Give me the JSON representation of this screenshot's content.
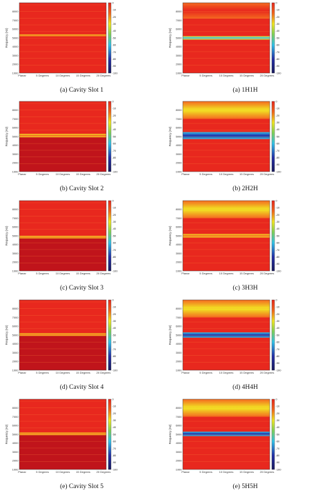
{
  "chart_data": [
    {
      "type": "heatmap",
      "id": "a-left",
      "caption": "(a) Cavity Slot 1",
      "ylabel": "Frequency (Hz)",
      "yticks": [
        "8000",
        "7000",
        "6000",
        "5000",
        "4000",
        "3000",
        "2000",
        "1000"
      ],
      "yticks_visible": [
        true,
        true,
        true,
        true,
        true,
        true,
        true,
        true
      ],
      "xticks": [
        "Planar",
        "5 Degrees",
        "10 Degrees",
        "15 Degrees",
        "20 Degrees"
      ],
      "colorbar_ticks": [
        "0",
        "-10",
        "-20",
        "-30",
        "-40",
        "-50",
        "-60",
        "-70",
        "-80",
        "-90",
        "-100"
      ],
      "clim": [
        -100,
        0
      ],
      "ylim": [
        1000,
        9000
      ],
      "bands": [
        [
          9000,
          5500,
          "red"
        ],
        [
          5400,
          5200,
          "yellow"
        ],
        [
          5200,
          1000,
          "red"
        ]
      ]
    },
    {
      "type": "heatmap",
      "id": "a-right",
      "caption": "(a) 1H1H",
      "ylabel": "Frequency (Hz)",
      "yticks": [
        "8000",
        "7000",
        "6000",
        "5000",
        "4000",
        "3000",
        "2000",
        "1000"
      ],
      "yticks_visible": [
        true,
        true,
        true,
        true,
        true,
        true,
        true,
        true
      ],
      "xticks": [
        "Planar",
        "5 Degrees",
        "10 Degrees",
        "15 Degrees",
        "20 Degrees"
      ],
      "colorbar_ticks": [
        "0",
        "-10",
        "-20",
        "-30",
        "-40",
        "-50",
        "-60",
        "-70",
        "-80",
        "-90",
        "-100"
      ],
      "clim": [
        -100,
        0
      ],
      "ylim": [
        1000,
        9000
      ],
      "bands": [
        [
          9000,
          7200,
          "orange"
        ],
        [
          7200,
          5200,
          "red"
        ],
        [
          5200,
          4800,
          "yellow-cyan"
        ],
        [
          4800,
          1000,
          "red"
        ]
      ]
    },
    {
      "type": "heatmap",
      "id": "b-left",
      "caption": "(b) Cavity Slot 2",
      "ylabel": "Frequency (Hz)",
      "yticks": [
        "8000",
        "7000",
        "6000",
        "5000",
        "4000",
        "3000",
        "2000",
        "1000"
      ],
      "yticks_visible": [
        true,
        true,
        true,
        true,
        true,
        true,
        true,
        true
      ],
      "xticks": [
        "Planar",
        "5 Degrees",
        "10 Degrees",
        "15 Degrees",
        "20 Degrees"
      ],
      "colorbar_ticks": [
        "0",
        "-10",
        "-20",
        "-30",
        "-40",
        "-50",
        "-60",
        "-70",
        "-80",
        "-90",
        "-100"
      ],
      "clim": [
        -100,
        0
      ],
      "ylim": [
        1000,
        9000
      ],
      "bands": [
        [
          9000,
          5300,
          "red"
        ],
        [
          5300,
          4900,
          "yellow"
        ],
        [
          4900,
          1000,
          "dark-red"
        ]
      ]
    },
    {
      "type": "heatmap",
      "id": "b-right",
      "caption": "(b) 2H2H",
      "ylabel": "Frequency (Hz)",
      "yticks": [
        "8000",
        "7000",
        "6000",
        "5000",
        "4000",
        "3000",
        "2000",
        "1000"
      ],
      "yticks_visible": [
        true,
        true,
        true,
        true,
        true,
        true,
        true,
        true
      ],
      "xticks": [
        "Planar",
        "5 Degrees",
        "10 Degrees",
        "15 Degrees",
        "20 Degrees"
      ],
      "colorbar_ticks": [
        "0",
        "-10",
        "-20",
        "-30",
        "-40",
        "-50",
        "-60",
        "-70",
        "-80",
        "-90",
        "-100"
      ],
      "clim": [
        -100,
        0
      ],
      "ylim": [
        1000,
        9000
      ],
      "bands": [
        [
          9000,
          7000,
          "orange-yellow"
        ],
        [
          7000,
          5500,
          "red"
        ],
        [
          5500,
          4700,
          "cyan-blue"
        ],
        [
          4700,
          1000,
          "red"
        ]
      ]
    },
    {
      "type": "heatmap",
      "id": "c-left",
      "caption": "(c) Cavity Slot 3",
      "ylabel": "Frequency (Hz)",
      "yticks": [
        "8000",
        "7000",
        "6000",
        "5000",
        "4000",
        "3000",
        "2000",
        "1000"
      ],
      "yticks_visible": [
        true,
        true,
        true,
        true,
        true,
        true,
        true,
        true
      ],
      "xticks": [
        "Planar",
        "5 Degrees",
        "10 Degrees",
        "15 Degrees",
        "20 Degrees"
      ],
      "colorbar_ticks": [
        "0",
        "-10",
        "-20",
        "-30",
        "-40",
        "-50",
        "-60",
        "-70",
        "-80",
        "-90",
        "-100"
      ],
      "clim": [
        -100,
        0
      ],
      "ylim": [
        1000,
        9000
      ],
      "bands": [
        [
          9000,
          5000,
          "red"
        ],
        [
          5000,
          4700,
          "yellow"
        ],
        [
          4700,
          1000,
          "dark-red"
        ]
      ]
    },
    {
      "type": "heatmap",
      "id": "c-right",
      "caption": "(c) 3H3H",
      "ylabel": "Frequency (Hz)",
      "yticks": [
        "8000",
        "7000",
        "6000",
        "5000",
        "4000",
        "3000",
        "2000",
        "1000"
      ],
      "yticks_visible": [
        true,
        true,
        true,
        true,
        true,
        true,
        true,
        true
      ],
      "xticks": [
        "Planar",
        "5 Degrees",
        "10 Degrees",
        "15 Degrees",
        "20 Degrees"
      ],
      "colorbar_ticks": [
        "0",
        "-10",
        "-20",
        "-30",
        "-40",
        "-50",
        "-60",
        "-70",
        "-80",
        "-90",
        "-100"
      ],
      "clim": [
        -100,
        0
      ],
      "ylim": [
        1000,
        9000
      ],
      "bands": [
        [
          9000,
          7000,
          "orange-yellow"
        ],
        [
          7000,
          5200,
          "red"
        ],
        [
          5200,
          4800,
          "yellow"
        ],
        [
          4800,
          1000,
          "red"
        ]
      ]
    },
    {
      "type": "heatmap",
      "id": "d-left",
      "caption": "(d) Cavity Slot 4",
      "ylabel": "Frequency (Hz)",
      "yticks": [
        "8000",
        "7000",
        "6000",
        "5000",
        "4000",
        "3000",
        "2000",
        "1000"
      ],
      "yticks_visible": [
        true,
        true,
        true,
        true,
        true,
        true,
        true,
        true
      ],
      "xticks": [
        "Planar",
        "5 Degrees",
        "10 Degrees",
        "15 Degrees",
        "20 Degrees"
      ],
      "colorbar_ticks": [
        "0",
        "-10",
        "-20",
        "-30",
        "-40",
        "-50",
        "-60",
        "-70",
        "-80",
        "-90",
        "-100"
      ],
      "clim": [
        -100,
        0
      ],
      "ylim": [
        1000,
        9000
      ],
      "bands": [
        [
          9000,
          5200,
          "red"
        ],
        [
          5200,
          4900,
          "yellow"
        ],
        [
          4900,
          1000,
          "dark-red"
        ]
      ]
    },
    {
      "type": "heatmap",
      "id": "d-right",
      "caption": "(d) 4H4H",
      "ylabel": "Frequency (Hz)",
      "yticks": [
        "8000",
        "7000",
        "6000",
        "5000",
        "4000",
        "3000",
        "2000",
        "1000"
      ],
      "yticks_visible": [
        true,
        true,
        true,
        true,
        true,
        true,
        true,
        true
      ],
      "xticks": [
        "Planar",
        "5 Degrees",
        "10 Degrees",
        "15 Degrees",
        "20 Degrees"
      ],
      "colorbar_ticks": [
        "0",
        "-10",
        "-20",
        "-30",
        "-40",
        "-50",
        "-60",
        "-70",
        "-80",
        "-90",
        "-100"
      ],
      "clim": [
        -100,
        0
      ],
      "ylim": [
        1000,
        9000
      ],
      "bands": [
        [
          9000,
          7000,
          "orange-yellow"
        ],
        [
          7000,
          5300,
          "red"
        ],
        [
          5300,
          4700,
          "cyan-blue"
        ],
        [
          4700,
          1000,
          "red"
        ]
      ]
    },
    {
      "type": "heatmap",
      "id": "e-left",
      "caption": "(e) Cavity Slot 5",
      "ylabel": "Frequency (Hz)",
      "yticks": [
        "8000",
        "7000",
        "6000",
        "5000",
        "4000",
        "3000",
        "2000",
        "1000"
      ],
      "yticks_visible": [
        true,
        true,
        true,
        true,
        true,
        true,
        true,
        true
      ],
      "xticks": [
        "Planar",
        "5 Degrees",
        "10 Degrees",
        "15 Degrees",
        "20 Degrees"
      ],
      "colorbar_ticks": [
        "0",
        "-10",
        "-20",
        "-30",
        "-40",
        "-50",
        "-60",
        "-70",
        "-80",
        "-90",
        "-100"
      ],
      "clim": [
        -100,
        0
      ],
      "ylim": [
        1000,
        9000
      ],
      "bands": [
        [
          9000,
          5200,
          "red"
        ],
        [
          5200,
          4900,
          "yellow"
        ],
        [
          4900,
          1000,
          "dark-red"
        ]
      ]
    },
    {
      "type": "heatmap",
      "id": "e-right",
      "caption": "(e) 5H5H",
      "ylabel": "Frequency (Hz)",
      "yticks": [
        "8000",
        "7000",
        "6000",
        "5000",
        "4000",
        "3000",
        "2000",
        "1000"
      ],
      "yticks_visible": [
        true,
        true,
        true,
        true,
        true,
        true,
        true,
        true
      ],
      "xticks": [
        "Planar",
        "5 Degrees",
        "10 Degrees",
        "15 Degrees",
        "20 Degrees"
      ],
      "colorbar_ticks": [
        "0",
        "-10",
        "-20",
        "-30",
        "-40",
        "-50",
        "-60",
        "-70",
        "-80",
        "-90",
        "-100"
      ],
      "clim": [
        -100,
        0
      ],
      "ylim": [
        1000,
        9000
      ],
      "bands": [
        [
          9000,
          7000,
          "orange-yellow"
        ],
        [
          7000,
          5300,
          "red"
        ],
        [
          5300,
          4800,
          "cyan-blue"
        ],
        [
          4800,
          1000,
          "red"
        ]
      ]
    }
  ],
  "colors": {
    "red": "#e8281e",
    "dark_red": "#c0141b",
    "orange": "#f3681f",
    "yellow": "#f2e823",
    "green": "#7fd35b",
    "cyan": "#33c4ea",
    "blue": "#2430a8",
    "navy": "#1a1b5e"
  }
}
